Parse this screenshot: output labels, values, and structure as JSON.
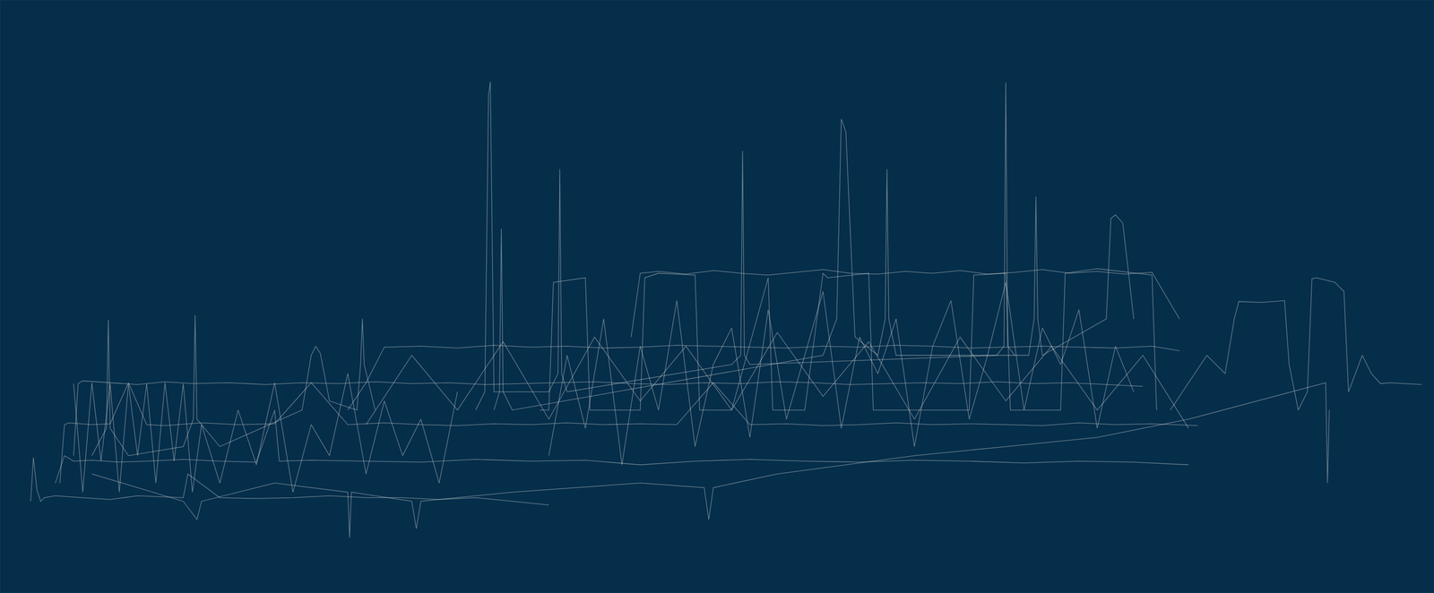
{
  "chart_data": {
    "type": "line",
    "color": "#ece9e0",
    "grid": false,
    "tick_labels": false,
    "xlim": [
      0,
      1568
    ],
    "ylim": [
      0,
      649
    ],
    "xticks": [],
    "yticks": [],
    "series": [
      {
        "x": [
          33,
          36,
          40,
          44,
          48,
          60,
          90,
          120,
          150,
          200,
          205,
          240,
          280,
          320,
          360,
          400,
          440,
          480,
          520,
          560,
          600
        ],
        "values": [
          100,
          148,
          112,
          100,
          104,
          106,
          104,
          102,
          106,
          104,
          130,
          104,
          103,
          104,
          106,
          104,
          104,
          102,
          104,
          100,
          96
        ]
      },
      {
        "x": [
          60,
          70,
          80,
          100,
          130,
          160,
          200,
          240,
          280,
          300,
          305,
          340,
          400,
          460,
          520,
          580,
          640,
          700,
          760,
          820,
          880,
          940,
          1000,
          1060,
          1120,
          1180,
          1240,
          1300
        ],
        "values": [
          120,
          150,
          144,
          145,
          143,
          144,
          146,
          144,
          143,
          200,
          144,
          145,
          144,
          143,
          146,
          144,
          145,
          140,
          144,
          146,
          144,
          143,
          145,
          144,
          142,
          144,
          143,
          140
        ]
      },
      {
        "x": [
          65,
          70,
          75,
          100,
          120,
          140,
          160,
          180,
          220,
          260,
          300,
          340,
          380,
          420,
          460,
          500,
          540,
          580,
          620,
          660,
          700,
          740,
          780,
          820,
          860,
          900,
          940,
          980,
          1020,
          1060,
          1100,
          1140,
          1180,
          1220,
          1260,
          1310
        ],
        "values": [
          120,
          184,
          186,
          184,
          185,
          230,
          184,
          183,
          186,
          184,
          185,
          230,
          184,
          186,
          184,
          183,
          185,
          184,
          186,
          184,
          185,
          184,
          230,
          184,
          185,
          183,
          184,
          186,
          184,
          185,
          184,
          183,
          186,
          184,
          185,
          183
        ]
      },
      {
        "x": [
          80,
          85,
          90,
          120,
          150,
          180,
          210,
          250,
          290,
          330,
          370,
          410,
          450,
          490,
          530,
          570,
          610,
          650,
          690,
          730,
          770,
          810,
          850,
          890,
          930,
          970,
          1010,
          1050,
          1090,
          1130,
          1170,
          1210,
          1250
        ],
        "values": [
          150,
          229,
          232,
          230,
          228,
          231,
          229,
          230,
          228,
          230,
          229,
          231,
          229,
          230,
          228,
          229,
          230,
          231,
          229,
          228,
          230,
          229,
          231,
          230,
          228,
          229,
          230,
          229,
          231,
          229,
          230,
          228,
          226
        ]
      },
      {
        "x": [
          380,
          400,
          420,
          460,
          500,
          540,
          580,
          620,
          660,
          700,
          740,
          780,
          820,
          860,
          900,
          940,
          980,
          1020,
          1060,
          1100,
          1140,
          1180,
          1220,
          1260,
          1290
        ],
        "values": [
          200,
          230,
          269,
          270,
          268,
          271,
          269,
          270,
          268,
          269,
          271,
          270,
          269,
          268,
          270,
          269,
          271,
          270,
          268,
          269,
          270,
          269,
          268,
          270,
          265
        ]
      },
      {
        "x": [
          590,
          600,
          605,
          640,
          645,
          700,
          705,
          720,
          760,
          765,
          800,
          840,
          845,
          880,
          900,
          905,
          950,
          955,
          1000,
          1060,
          1065,
          1100,
          1105,
          1160,
          1165,
          1200,
          1260,
          1265
        ],
        "values": [
          200,
          200,
          340,
          345,
          200,
          200,
          345,
          350,
          348,
          200,
          200,
          345,
          200,
          200,
          350,
          345,
          350,
          200,
          200,
          200,
          348,
          350,
          200,
          200,
          350,
          355,
          348,
          200
        ]
      },
      {
        "x": [
          520,
          530,
          534,
          536,
          540,
          600,
          610,
          612,
          614,
          620,
          800,
          810,
          812,
          814,
          820,
          1090,
          1098,
          1100,
          1102,
          1110
        ],
        "values": [
          200,
          220,
          545,
          560,
          220,
          220,
          240,
          464,
          240,
          220,
          250,
          260,
          484,
          260,
          250,
          260,
          270,
          559,
          270,
          260
        ]
      },
      {
        "x": [
          540,
          546,
          548,
          550,
          560,
          900,
          915,
          920,
          925,
          935,
          960,
          968,
          970,
          972,
          980,
          1125,
          1131,
          1133,
          1135,
          1140,
          1210,
          1215,
          1220,
          1228,
          1240
        ],
        "values": [
          200,
          220,
          399,
          220,
          200,
          260,
          300,
          519,
          505,
          280,
          260,
          300,
          464,
          300,
          260,
          260,
          300,
          434,
          300,
          260,
          300,
          410,
          414,
          405,
          300
        ]
      },
      {
        "x": [
          100,
          116,
          118,
          120,
          140,
          200,
          211,
          213,
          215,
          240,
          330,
          340,
          345,
          350,
          360,
          390,
          394,
          396,
          398,
          410
        ],
        "values": [
          150,
          180,
          299,
          180,
          150,
          160,
          190,
          304,
          190,
          160,
          200,
          260,
          270,
          262,
          210,
          200,
          250,
          300,
          250,
          200
        ]
      },
      {
        "x": [
          1280,
          1300,
          1320,
          1340,
          1350,
          1355,
          1380,
          1405,
          1410,
          1420,
          1430,
          1435,
          1440,
          1460,
          1470,
          1475,
          1490,
          1500,
          1510,
          1520,
          1540,
          1555
        ],
        "values": [
          200,
          230,
          260,
          240,
          300,
          319,
          318,
          320,
          250,
          200,
          220,
          344,
          345,
          340,
          330,
          220,
          260,
          240,
          229,
          230,
          229,
          228
        ]
      },
      {
        "x": [
          100,
          200,
          215,
          220,
          300,
          380,
          382,
          384,
          450,
          455,
          460,
          560,
          700,
          770,
          775,
          780,
          850,
          1000,
          1100,
          1200,
          1300,
          1450,
          1452,
          1454
        ],
        "values": [
          130,
          100,
          80,
          100,
          120,
          110,
          60,
          110,
          100,
          70,
          100,
          110,
          120,
          115,
          80,
          115,
          130,
          150,
          160,
          170,
          190,
          230,
          120,
          200
        ]
      },
      {
        "x": [
          600,
          620,
          640,
          660,
          680,
          700,
          720,
          740,
          760,
          780,
          800,
          820,
          840,
          860,
          880,
          900,
          920,
          940,
          960,
          980,
          1000,
          1020,
          1040,
          1060,
          1080,
          1100,
          1120,
          1140,
          1160,
          1180,
          1200,
          1220,
          1240
        ],
        "values": [
          150,
          260,
          180,
          300,
          140,
          270,
          200,
          320,
          160,
          250,
          290,
          170,
          310,
          190,
          260,
          330,
          180,
          280,
          240,
          300,
          160,
          270,
          320,
          190,
          260,
          340,
          200,
          290,
          250,
          310,
          180,
          270,
          220
        ]
      },
      {
        "x": [
          80,
          90,
          100,
          110,
          120,
          130,
          140,
          150,
          160,
          170,
          180,
          190,
          200,
          210,
          220,
          240,
          260,
          280,
          300,
          320,
          340,
          360,
          380,
          400,
          420,
          440,
          460,
          480,
          500
        ],
        "values": [
          229,
          110,
          230,
          144,
          229,
          110,
          229,
          150,
          229,
          120,
          230,
          144,
          229,
          110,
          184,
          120,
          200,
          140,
          230,
          110,
          184,
          150,
          240,
          130,
          210,
          150,
          190,
          120,
          220
        ]
      },
      {
        "x": [
          690,
          700,
          720,
          750,
          780,
          810,
          840,
          870,
          900,
          930,
          960,
          990,
          1020,
          1050,
          1080,
          1110,
          1140,
          1170,
          1200,
          1230,
          1260,
          1290
        ],
        "values": [
          280,
          350,
          352,
          349,
          353,
          350,
          348,
          351,
          354,
          350,
          349,
          352,
          350,
          353,
          349,
          351,
          354,
          350,
          352,
          349,
          351,
          300
        ]
      },
      {
        "x": [
          400,
          450,
          500,
          550,
          600,
          650,
          700,
          750,
          800,
          850,
          900,
          950,
          1000,
          1050,
          1100,
          1150,
          1200,
          1250,
          1300
        ],
        "values": [
          184,
          260,
          200,
          275,
          190,
          280,
          210,
          270,
          200,
          285,
          215,
          275,
          190,
          280,
          210,
          270,
          200,
          260,
          180
        ]
      }
    ]
  }
}
